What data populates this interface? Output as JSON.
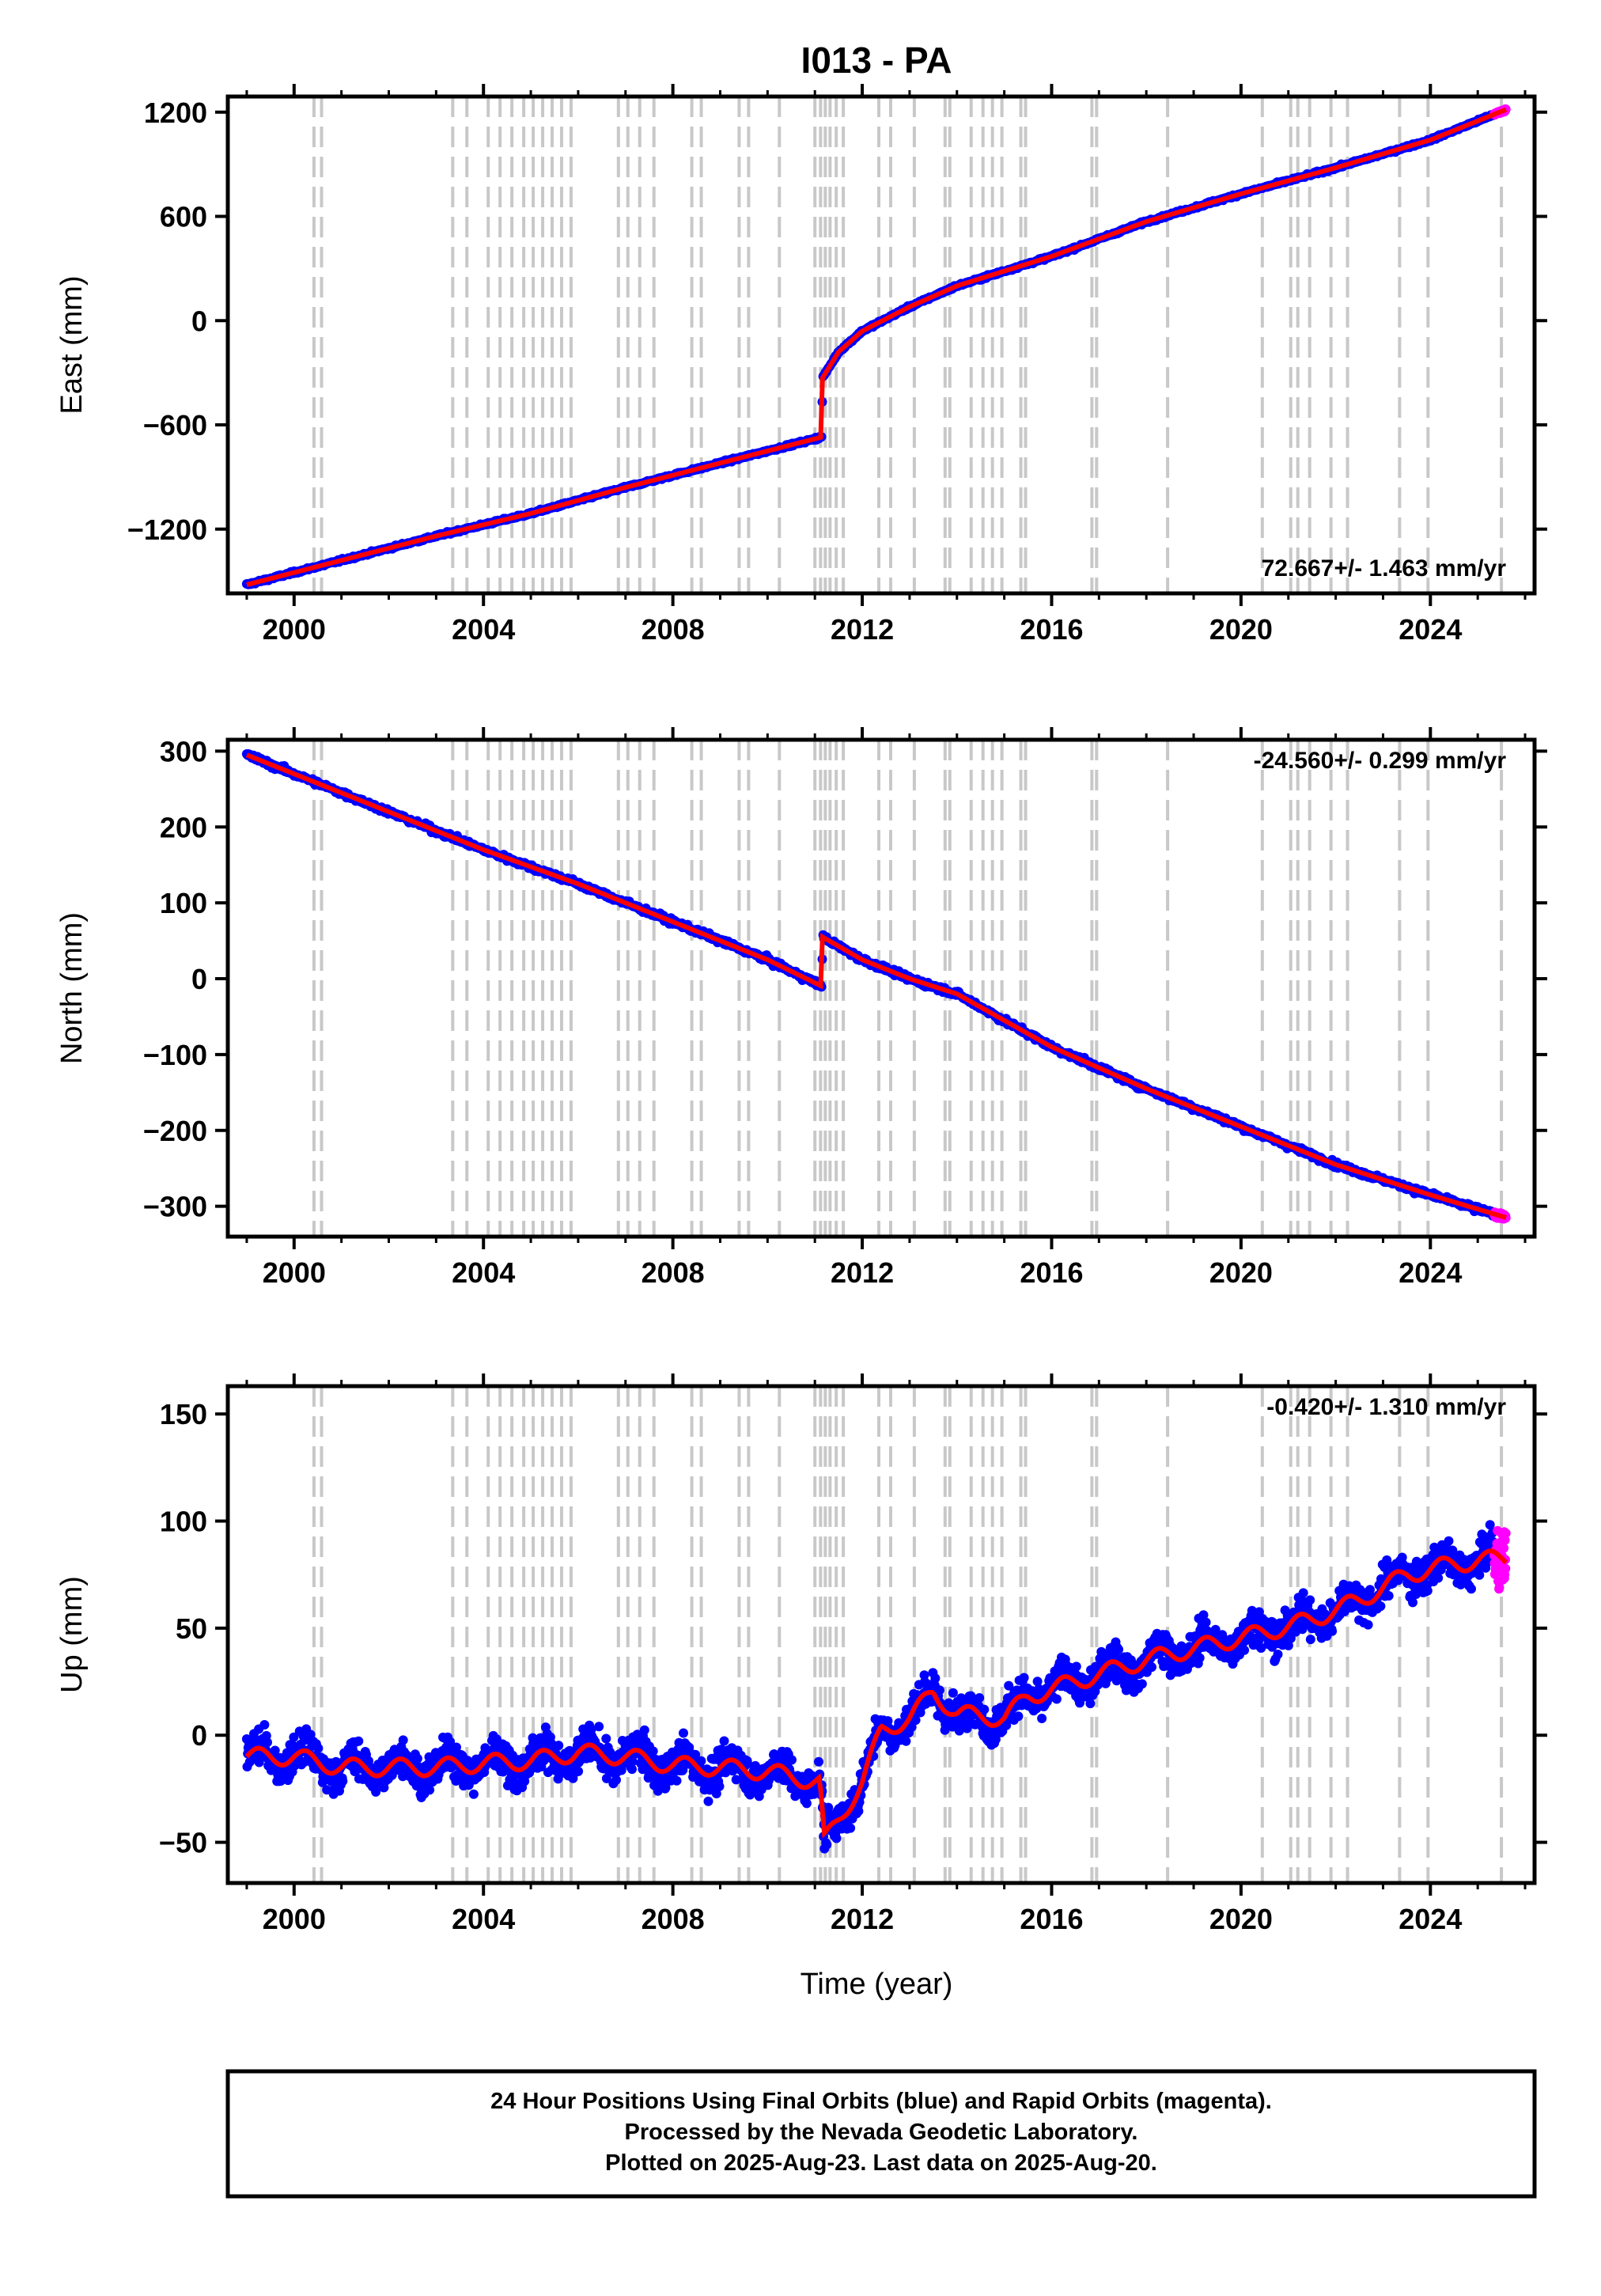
{
  "title": "I013 - PA",
  "xlabel": "Time (year)",
  "footer": {
    "lines": [
      "24 Hour Positions Using Final Orbits (blue) and Rapid Orbits (magenta).",
      "Processed by the Nevada Geodetic Laboratory.",
      "Plotted on 2025-Aug-23. Last data on 2025-Aug-20."
    ]
  },
  "colors": {
    "final_orbits": "#0000ff",
    "rapid_orbits": "#ff00ff",
    "model": "#ff0000",
    "event_lines": "#c8c8c8"
  },
  "event_years": [
    2000.42,
    2000.58,
    2003.35,
    2003.65,
    2004.1,
    2004.35,
    2004.6,
    2004.85,
    2005.05,
    2005.25,
    2005.45,
    2005.65,
    2005.85,
    2006.85,
    2007.05,
    2007.3,
    2007.6,
    2008.4,
    2008.6,
    2009.4,
    2009.6,
    2010.25,
    2011.0,
    2011.12,
    2011.22,
    2011.32,
    2011.45,
    2011.6,
    2012.35,
    2012.6,
    2013.1,
    2013.75,
    2013.85,
    2014.3,
    2014.55,
    2014.75,
    2014.95,
    2015.35,
    2015.45,
    2016.85,
    2016.95,
    2018.45,
    2020.45,
    2021.05,
    2021.2,
    2021.45,
    2021.9,
    2022.25,
    2023.35,
    2023.95,
    2025.5
  ],
  "chart_data": [
    {
      "type": "scatter",
      "ylabel": "East (mm)",
      "rate_label": "72.667+/- 1.463 mm/yr",
      "xlim": [
        1998.6,
        2026.2
      ],
      "ylim": [
        -1570,
        1290
      ],
      "xticks": [
        2000,
        2004,
        2008,
        2012,
        2016,
        2020,
        2024
      ],
      "yticks": [
        -1200,
        -600,
        0,
        600,
        1200
      ],
      "x": [
        1999.0,
        2001.0,
        2003.0,
        2005.0,
        2007.0,
        2009.0,
        2011.15,
        2011.16,
        2011.5,
        2012.0,
        2013.0,
        2014.0,
        2016.0,
        2018.0,
        2020.0,
        2022.0,
        2024.0,
        2025.6
      ],
      "y": [
        -1520,
        -1380,
        -1240,
        -1110,
        -960,
        -820,
        -670,
        -330,
        -180,
        -60,
        80,
        200,
        370,
        570,
        730,
        880,
        1040,
        1215
      ]
    },
    {
      "type": "scatter",
      "ylabel": "North (mm)",
      "rate_label": "-24.560+/- 0.299 mm/yr",
      "xlim": [
        1998.6,
        2026.2
      ],
      "ylim": [
        -340,
        315
      ],
      "xticks": [
        2000,
        2004,
        2008,
        2012,
        2016,
        2020,
        2024
      ],
      "yticks": [
        -300,
        -200,
        -100,
        0,
        100,
        200,
        300
      ],
      "x": [
        1999.0,
        2000.0,
        2002.0,
        2004.0,
        2006.0,
        2008.0,
        2010.0,
        2011.15,
        2011.16,
        2012.0,
        2013.0,
        2014.0,
        2016.0,
        2018.0,
        2020.0,
        2022.0,
        2024.0,
        2025.6
      ],
      "y": [
        295,
        270,
        220,
        170,
        125,
        75,
        25,
        -10,
        55,
        25,
        0,
        -20,
        -90,
        -145,
        -195,
        -245,
        -285,
        -315
      ]
    },
    {
      "type": "scatter",
      "ylabel": "Up (mm)",
      "rate_label": "-0.420+/- 1.310 mm/yr",
      "xlim": [
        1998.6,
        2026.2
      ],
      "ylim": [
        -69,
        163
      ],
      "xticks": [
        2000,
        2004,
        2008,
        2012,
        2016,
        2020,
        2024
      ],
      "yticks": [
        -50,
        0,
        50,
        100,
        150
      ],
      "x": [
        1999.0,
        2000.0,
        2001.0,
        2002.0,
        2003.0,
        2004.0,
        2005.0,
        2006.0,
        2007.0,
        2008.0,
        2009.0,
        2010.0,
        2011.1,
        2011.2,
        2012.0,
        2012.4,
        2013.0,
        2013.5,
        2014.0,
        2015.0,
        2015.5,
        2016.5,
        2017.5,
        2018.5,
        2019.5,
        2020.5,
        2021.5,
        2022.5,
        2023.5,
        2024.5,
        2025.6
      ],
      "y": [
        -10,
        -10,
        -15,
        -15,
        -15,
        -13,
        -12,
        -8,
        -10,
        -14,
        -15,
        -17,
        -22,
        -50,
        -22,
        2,
        8,
        20,
        10,
        8,
        18,
        25,
        32,
        38,
        43,
        48,
        54,
        63,
        75,
        80,
        83
      ]
    }
  ]
}
